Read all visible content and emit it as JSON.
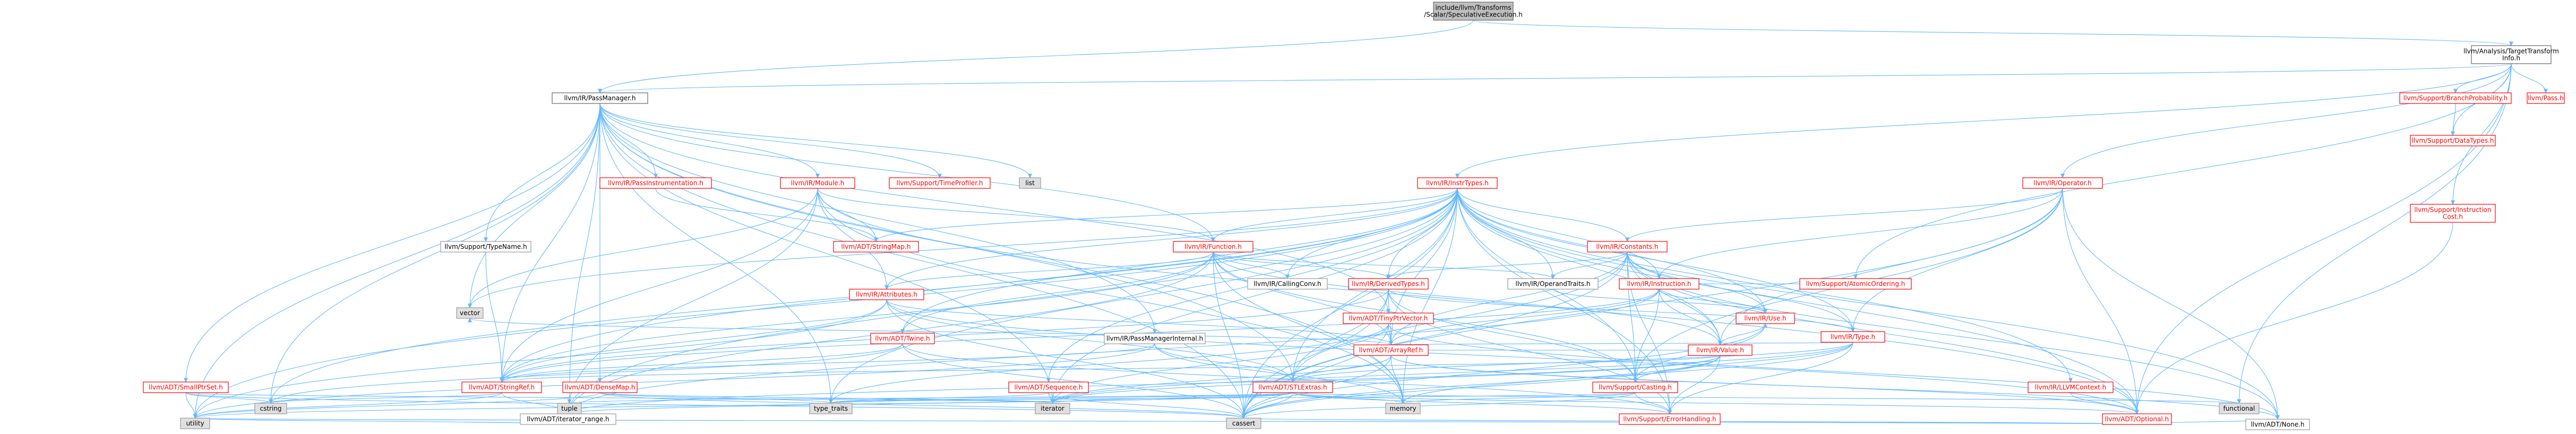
{
  "nodes": [
    {
      "id": "root",
      "label": [
        "include/llvm/Transforms",
        "/Scalar/SpeculativeExecution.h"
      ],
      "kind": "root"
    },
    {
      "id": "passmanager",
      "label": [
        "llvm/IR/PassManager.h"
      ],
      "kind": "link"
    },
    {
      "id": "tti",
      "label": [
        "llvm/Analysis/TargetTransform",
        "Info.h"
      ],
      "kind": "link"
    },
    {
      "id": "instrtypes",
      "label": [
        "llvm/IR/InstrTypes.h"
      ],
      "kind": "red"
    },
    {
      "id": "operator",
      "label": [
        "llvm/IR/Operator.h"
      ],
      "kind": "red"
    },
    {
      "id": "branchprob",
      "label": [
        "llvm/Support/BranchProbability.h"
      ],
      "kind": "red"
    },
    {
      "id": "pass",
      "label": [
        "llvm/Pass.h"
      ],
      "kind": "red"
    },
    {
      "id": "datatypes",
      "label": [
        "llvm/Support/DataTypes.h"
      ],
      "kind": "red"
    },
    {
      "id": "instcost",
      "label": [
        "llvm/Support/Instruction",
        "Cost.h"
      ],
      "kind": "red"
    },
    {
      "id": "passinstr",
      "label": [
        "llvm/IR/PassInstrumentation.h"
      ],
      "kind": "red"
    },
    {
      "id": "module",
      "label": [
        "llvm/IR/Module.h"
      ],
      "kind": "red"
    },
    {
      "id": "timeprofiler",
      "label": [
        "llvm/Support/TimeProfiler.h"
      ],
      "kind": "red"
    },
    {
      "id": "list",
      "label": [
        "list"
      ],
      "kind": "sys"
    },
    {
      "id": "typename",
      "label": [
        "llvm/Support/TypeName.h"
      ],
      "kind": "grey"
    },
    {
      "id": "stringmap",
      "label": [
        "llvm/ADT/StringMap.h"
      ],
      "kind": "red"
    },
    {
      "id": "function",
      "label": [
        "llvm/IR/Function.h"
      ],
      "kind": "red"
    },
    {
      "id": "callingconv",
      "label": [
        "llvm/IR/CallingConv.h"
      ],
      "kind": "grey"
    },
    {
      "id": "constants",
      "label": [
        "llvm/IR/Constants.h"
      ],
      "kind": "red"
    },
    {
      "id": "instruction",
      "label": [
        "llvm/IR/Instruction.h"
      ],
      "kind": "red"
    },
    {
      "id": "derivedtypes",
      "label": [
        "llvm/IR/DerivedTypes.h"
      ],
      "kind": "red"
    },
    {
      "id": "operandtraits",
      "label": [
        "llvm/IR/OperandTraits.h"
      ],
      "kind": "grey"
    },
    {
      "id": "use",
      "label": [
        "llvm/IR/Use.h"
      ],
      "kind": "red"
    },
    {
      "id": "atomicordering",
      "label": [
        "llvm/Support/AtomicOrdering.h"
      ],
      "kind": "red"
    },
    {
      "id": "type",
      "label": [
        "llvm/IR/Type.h"
      ],
      "kind": "red"
    },
    {
      "id": "value",
      "label": [
        "llvm/IR/Value.h"
      ],
      "kind": "red"
    },
    {
      "id": "attributes",
      "label": [
        "llvm/IR/Attributes.h"
      ],
      "kind": "red"
    },
    {
      "id": "tinyptrvector",
      "label": [
        "llvm/ADT/TinyPtrVector.h"
      ],
      "kind": "red"
    },
    {
      "id": "twine",
      "label": [
        "llvm/ADT/Twine.h"
      ],
      "kind": "red"
    },
    {
      "id": "pmi",
      "label": [
        "llvm/IR/PassManagerInternal.h"
      ],
      "kind": "grey"
    },
    {
      "id": "arrayref",
      "label": [
        "llvm/ADT/ArrayRef.h"
      ],
      "kind": "red"
    },
    {
      "id": "smallptrset",
      "label": [
        "llvm/ADT/SmallPtrSet.h"
      ],
      "kind": "red"
    },
    {
      "id": "densemap",
      "label": [
        "llvm/ADT/DenseMap.h"
      ],
      "kind": "red"
    },
    {
      "id": "sequence",
      "label": [
        "llvm/ADT/Sequence.h"
      ],
      "kind": "red"
    },
    {
      "id": "stlextras",
      "label": [
        "llvm/ADT/STLExtras.h"
      ],
      "kind": "red"
    },
    {
      "id": "casting",
      "label": [
        "llvm/Support/Casting.h"
      ],
      "kind": "red"
    },
    {
      "id": "llvmcontext",
      "label": [
        "llvm/IR/LLVMContext.h"
      ],
      "kind": "red"
    },
    {
      "id": "optional",
      "label": [
        "llvm/ADT/Optional.h"
      ],
      "kind": "red"
    },
    {
      "id": "errorhandling",
      "label": [
        "llvm/Support/ErrorHandling.h"
      ],
      "kind": "red"
    },
    {
      "id": "stringref",
      "label": [
        "llvm/ADT/StringRef.h"
      ],
      "kind": "red"
    },
    {
      "id": "iterrange",
      "label": [
        "llvm/ADT/iterator_range.h"
      ],
      "kind": "grey"
    },
    {
      "id": "none",
      "label": [
        "llvm/ADT/None.h"
      ],
      "kind": "grey"
    },
    {
      "id": "vector",
      "label": [
        "vector"
      ],
      "kind": "sys"
    },
    {
      "id": "cstring",
      "label": [
        "cstring"
      ],
      "kind": "sys"
    },
    {
      "id": "tuple",
      "label": [
        "tuple"
      ],
      "kind": "sys"
    },
    {
      "id": "typetraits",
      "label": [
        "type_traits"
      ],
      "kind": "sys"
    },
    {
      "id": "iterator",
      "label": [
        "iterator"
      ],
      "kind": "sys"
    },
    {
      "id": "memory",
      "label": [
        "memory"
      ],
      "kind": "sys"
    },
    {
      "id": "functional",
      "label": [
        "functional"
      ],
      "kind": "sys"
    },
    {
      "id": "utility",
      "label": [
        "utility"
      ],
      "kind": "sys"
    },
    {
      "id": "cassert",
      "label": [
        "cassert"
      ],
      "kind": "sys"
    }
  ],
  "edges": [
    [
      "root",
      "passmanager"
    ],
    [
      "root",
      "tti"
    ],
    [
      "tti",
      "passmanager"
    ],
    [
      "tti",
      "instrtypes"
    ],
    [
      "tti",
      "operator"
    ],
    [
      "tti",
      "branchprob"
    ],
    [
      "tti",
      "pass"
    ],
    [
      "tti",
      "datatypes"
    ],
    [
      "tti",
      "instcost"
    ],
    [
      "tti",
      "atomicordering"
    ],
    [
      "tti",
      "optional"
    ],
    [
      "tti",
      "functional"
    ],
    [
      "passmanager",
      "passinstr"
    ],
    [
      "passmanager",
      "module"
    ],
    [
      "passmanager",
      "timeprofiler"
    ],
    [
      "passmanager",
      "list"
    ],
    [
      "passmanager",
      "typename"
    ],
    [
      "passmanager",
      "function"
    ],
    [
      "passmanager",
      "pmi"
    ],
    [
      "passmanager",
      "smallptrset"
    ],
    [
      "passmanager",
      "densemap"
    ],
    [
      "passmanager",
      "stringref"
    ],
    [
      "passmanager",
      "tinyptrvector"
    ],
    [
      "passmanager",
      "stlextras"
    ],
    [
      "passmanager",
      "cstring"
    ],
    [
      "passmanager",
      "vector"
    ],
    [
      "passmanager",
      "tuple"
    ],
    [
      "passmanager",
      "iterator"
    ],
    [
      "passmanager",
      "typetraits"
    ],
    [
      "passmanager",
      "utility"
    ],
    [
      "passmanager",
      "memory"
    ],
    [
      "passmanager",
      "cassert"
    ],
    [
      "passinstr",
      "stringmap"
    ],
    [
      "passinstr",
      "any_placeholder"
    ],
    [
      "module",
      "function"
    ],
    [
      "module",
      "attributes"
    ],
    [
      "module",
      "stringmap"
    ],
    [
      "module",
      "stringref"
    ],
    [
      "module",
      "iterrange"
    ],
    [
      "module",
      "vector"
    ],
    [
      "module",
      "memory"
    ],
    [
      "module",
      "optional"
    ],
    [
      "typename",
      "stringref"
    ],
    [
      "instrtypes",
      "function"
    ],
    [
      "instrtypes",
      "callingconv"
    ],
    [
      "instrtypes",
      "constants"
    ],
    [
      "instrtypes",
      "instruction"
    ],
    [
      "instrtypes",
      "derivedtypes"
    ],
    [
      "instrtypes",
      "operandtraits"
    ],
    [
      "instrtypes",
      "use"
    ],
    [
      "instrtypes",
      "type"
    ],
    [
      "instrtypes",
      "value"
    ],
    [
      "instrtypes",
      "attributes"
    ],
    [
      "instrtypes",
      "arrayref"
    ],
    [
      "instrtypes",
      "stlextras"
    ],
    [
      "instrtypes",
      "sequence"
    ],
    [
      "instrtypes",
      "twine"
    ],
    [
      "instrtypes",
      "stringmap"
    ],
    [
      "instrtypes",
      "casting"
    ],
    [
      "instrtypes",
      "errorhandling"
    ],
    [
      "instrtypes",
      "llvmcontext"
    ],
    [
      "instrtypes",
      "optional"
    ],
    [
      "instrtypes",
      "none"
    ],
    [
      "instrtypes",
      "stringref"
    ],
    [
      "instrtypes",
      "iterrange"
    ],
    [
      "instrtypes",
      "iterator"
    ],
    [
      "instrtypes",
      "cassert"
    ],
    [
      "instrtypes",
      "utility"
    ],
    [
      "instrtypes",
      "memory"
    ],
    [
      "instrtypes",
      "vector"
    ],
    [
      "instrtypes",
      "cstring"
    ],
    [
      "instrtypes",
      "typetraits"
    ],
    [
      "operator",
      "constants"
    ],
    [
      "operator",
      "instruction"
    ],
    [
      "operator",
      "type"
    ],
    [
      "operator",
      "value"
    ],
    [
      "operator",
      "casting"
    ],
    [
      "operator",
      "none"
    ],
    [
      "operator",
      "optional"
    ],
    [
      "operator",
      "cassert"
    ],
    [
      "branchprob",
      "datatypes"
    ],
    [
      "instcost",
      "optional"
    ],
    [
      "function",
      "callingconv"
    ],
    [
      "function",
      "derivedtypes"
    ],
    [
      "function",
      "attributes"
    ],
    [
      "function",
      "operandtraits"
    ],
    [
      "function",
      "value"
    ],
    [
      "function",
      "twine"
    ],
    [
      "function",
      "stringref"
    ],
    [
      "function",
      "iterrange"
    ],
    [
      "function",
      "memory"
    ],
    [
      "function",
      "cassert"
    ],
    [
      "function",
      "casting"
    ],
    [
      "function",
      "arrayref"
    ],
    [
      "constants",
      "derivedtypes"
    ],
    [
      "constants",
      "operandtraits"
    ],
    [
      "constants",
      "use"
    ],
    [
      "constants",
      "type"
    ],
    [
      "constants",
      "value"
    ],
    [
      "constants",
      "arrayref"
    ],
    [
      "constants",
      "stlextras"
    ],
    [
      "constants",
      "casting"
    ],
    [
      "constants",
      "errorhandling"
    ],
    [
      "constants",
      "optional"
    ],
    [
      "constants",
      "none"
    ],
    [
      "constants",
      "cassert"
    ],
    [
      "instruction",
      "atomicordering"
    ],
    [
      "instruction",
      "use"
    ],
    [
      "instruction",
      "value"
    ],
    [
      "instruction",
      "stringref"
    ],
    [
      "instruction",
      "iterrange"
    ],
    [
      "instruction",
      "casting"
    ],
    [
      "instruction",
      "arrayref"
    ],
    [
      "derivedtypes",
      "type"
    ],
    [
      "derivedtypes",
      "arrayref"
    ],
    [
      "derivedtypes",
      "stringref"
    ],
    [
      "derivedtypes",
      "stlextras"
    ],
    [
      "derivedtypes",
      "casting"
    ],
    [
      "derivedtypes",
      "errorhandling"
    ],
    [
      "derivedtypes",
      "cassert"
    ],
    [
      "operandtraits",
      "use"
    ],
    [
      "use",
      "casting"
    ],
    [
      "use",
      "cassert"
    ],
    [
      "type",
      "arrayref"
    ],
    [
      "type",
      "stlextras"
    ],
    [
      "type",
      "casting"
    ],
    [
      "type",
      "errorhandling"
    ],
    [
      "type",
      "cassert"
    ],
    [
      "type",
      "iterator"
    ],
    [
      "value",
      "use"
    ],
    [
      "value",
      "stringref"
    ],
    [
      "value",
      "iterrange"
    ],
    [
      "value",
      "casting"
    ],
    [
      "value",
      "errorhandling"
    ],
    [
      "value",
      "memory"
    ],
    [
      "value",
      "cassert"
    ],
    [
      "value",
      "iterator"
    ],
    [
      "value",
      "arrayref"
    ],
    [
      "attributes",
      "arrayref"
    ],
    [
      "attributes",
      "stringref"
    ],
    [
      "attributes",
      "stlextras"
    ],
    [
      "attributes",
      "optional"
    ],
    [
      "attributes",
      "bitset_placeholder"
    ],
    [
      "attributes",
      "utility"
    ],
    [
      "attributes",
      "cassert"
    ],
    [
      "tinyptrvector",
      "arrayref"
    ],
    [
      "tinyptrvector",
      "none"
    ],
    [
      "tinyptrvector",
      "cassert"
    ],
    [
      "tinyptrvector",
      "iterator"
    ],
    [
      "tinyptrvector",
      "typetraits"
    ],
    [
      "twine",
      "stringref"
    ],
    [
      "twine",
      "errorhandling"
    ],
    [
      "twine",
      "cassert"
    ],
    [
      "twine",
      "cstring"
    ],
    [
      "pmi",
      "stringref"
    ],
    [
      "pmi",
      "stlextras"
    ],
    [
      "pmi",
      "memory"
    ],
    [
      "pmi",
      "utility"
    ],
    [
      "arrayref",
      "stlextras"
    ],
    [
      "arrayref",
      "none"
    ],
    [
      "arrayref",
      "optional"
    ],
    [
      "arrayref",
      "iterator"
    ],
    [
      "arrayref",
      "memory"
    ],
    [
      "arrayref",
      "vector"
    ],
    [
      "arrayref",
      "cassert"
    ],
    [
      "smallptrset",
      "cstring"
    ],
    [
      "smallptrset",
      "utility"
    ],
    [
      "smallptrset",
      "cassert"
    ],
    [
      "smallptrset",
      "iterator"
    ],
    [
      "densemap",
      "iterator"
    ],
    [
      "densemap",
      "utility"
    ],
    [
      "densemap",
      "cassert"
    ],
    [
      "densemap",
      "typetraits"
    ],
    [
      "sequence",
      "iterator"
    ],
    [
      "sequence",
      "typetraits"
    ],
    [
      "sequence",
      "cassert"
    ],
    [
      "stlextras",
      "iterrange"
    ],
    [
      "stlextras",
      "optional"
    ],
    [
      "stlextras",
      "errorhandling"
    ],
    [
      "stlextras",
      "iterator"
    ],
    [
      "stlextras",
      "tuple"
    ],
    [
      "stlextras",
      "typetraits"
    ],
    [
      "stlextras",
      "utility"
    ],
    [
      "stlextras",
      "memory"
    ],
    [
      "stlextras",
      "cassert"
    ],
    [
      "stlextras",
      "functional"
    ],
    [
      "casting",
      "errorhandling"
    ],
    [
      "casting",
      "cassert"
    ],
    [
      "casting",
      "memory"
    ],
    [
      "casting",
      "typetraits"
    ],
    [
      "llvmcontext",
      "optional"
    ],
    [
      "optional",
      "none"
    ],
    [
      "optional",
      "cassert"
    ],
    [
      "optional",
      "utility"
    ],
    [
      "stringref",
      "iterrange"
    ],
    [
      "stringref",
      "cstring"
    ],
    [
      "stringref",
      "utility"
    ],
    [
      "iterrange",
      "utility"
    ]
  ]
}
